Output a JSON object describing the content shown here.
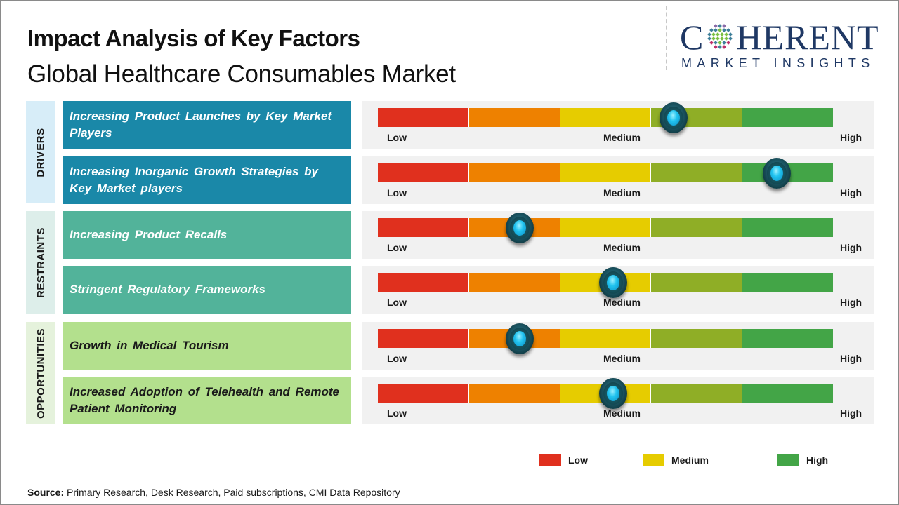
{
  "header": {
    "title": "Impact Analysis of Key Factors",
    "subtitle": "Global Healthcare Consumables Market"
  },
  "logo": {
    "brand_first_letter": "C",
    "brand_rest": "HERENT",
    "tagline": "MARKET INSIGHTS",
    "icon": "dotted-globe-icon",
    "color": "#1f3864"
  },
  "scale": {
    "low_label": "Low",
    "medium_label": "Medium",
    "high_label": "High",
    "segment_colors": [
      "#e0301e",
      "#ee8100",
      "#e6cc00",
      "#8fae26",
      "#43a547"
    ]
  },
  "categories": [
    {
      "label": "DRIVERS",
      "strip_color": "#d7edf8",
      "box_color": "#1a88a8",
      "text_color": "#ffffff",
      "factors": [
        {
          "text": "Increasing Product Launches by Key Market Players",
          "impact": 0.65
        },
        {
          "text": "Increasing Inorganic Growth Strategies by Key Market players",
          "impact": 0.877
        }
      ]
    },
    {
      "label": "RESTRAINTS",
      "strip_color": "#ddeeea",
      "box_color": "#52b39a",
      "text_color": "#ffffff",
      "factors": [
        {
          "text": "Increasing Product Recalls",
          "impact": 0.312
        },
        {
          "text": "Stringent Regulatory Frameworks",
          "impact": 0.517
        }
      ]
    },
    {
      "label": "OPPORTUNITIES",
      "strip_color": "#e5f2dc",
      "box_color": "#b3e08d",
      "text_color": "#1a1a1a",
      "factors": [
        {
          "text": "Growth in Medical Tourism",
          "impact": 0.312
        },
        {
          "text": "Increased Adoption of Telehealth and Remote Patient Monitoring",
          "impact": 0.517
        }
      ]
    }
  ],
  "legend": [
    {
      "label": "Low",
      "color": "#e0301e"
    },
    {
      "label": "Medium",
      "color": "#e6cc00"
    },
    {
      "label": "High",
      "color": "#43a547"
    }
  ],
  "source": {
    "prefix": "Source:",
    "text": " Primary Research, Desk Research, Paid subscriptions, CMI Data Repository"
  },
  "chart_data": {
    "type": "table",
    "title": "Impact Analysis of Key Factors",
    "subtitle": "Global Healthcare Consumables Market",
    "scale": {
      "min_label": "Low",
      "mid_label": "Medium",
      "max_label": "High",
      "range": [
        0,
        1
      ]
    },
    "rows": [
      {
        "category": "DRIVERS",
        "factor": "Increasing Product Launches by Key Market Players",
        "impact": 0.65,
        "level": "Medium-High"
      },
      {
        "category": "DRIVERS",
        "factor": "Increasing Inorganic Growth Strategies by Key Market players",
        "impact": 0.877,
        "level": "High"
      },
      {
        "category": "RESTRAINTS",
        "factor": "Increasing Product Recalls",
        "impact": 0.312,
        "level": "Low-Medium"
      },
      {
        "category": "RESTRAINTS",
        "factor": "Stringent Regulatory Frameworks",
        "impact": 0.517,
        "level": "Medium"
      },
      {
        "category": "OPPORTUNITIES",
        "factor": "Growth in Medical Tourism",
        "impact": 0.312,
        "level": "Low-Medium"
      },
      {
        "category": "OPPORTUNITIES",
        "factor": "Increased Adoption of Telehealth and Remote Patient Monitoring",
        "impact": 0.517,
        "level": "Medium"
      }
    ],
    "legend": [
      "Low",
      "Medium",
      "High"
    ],
    "legend_position": "bottom-right"
  }
}
